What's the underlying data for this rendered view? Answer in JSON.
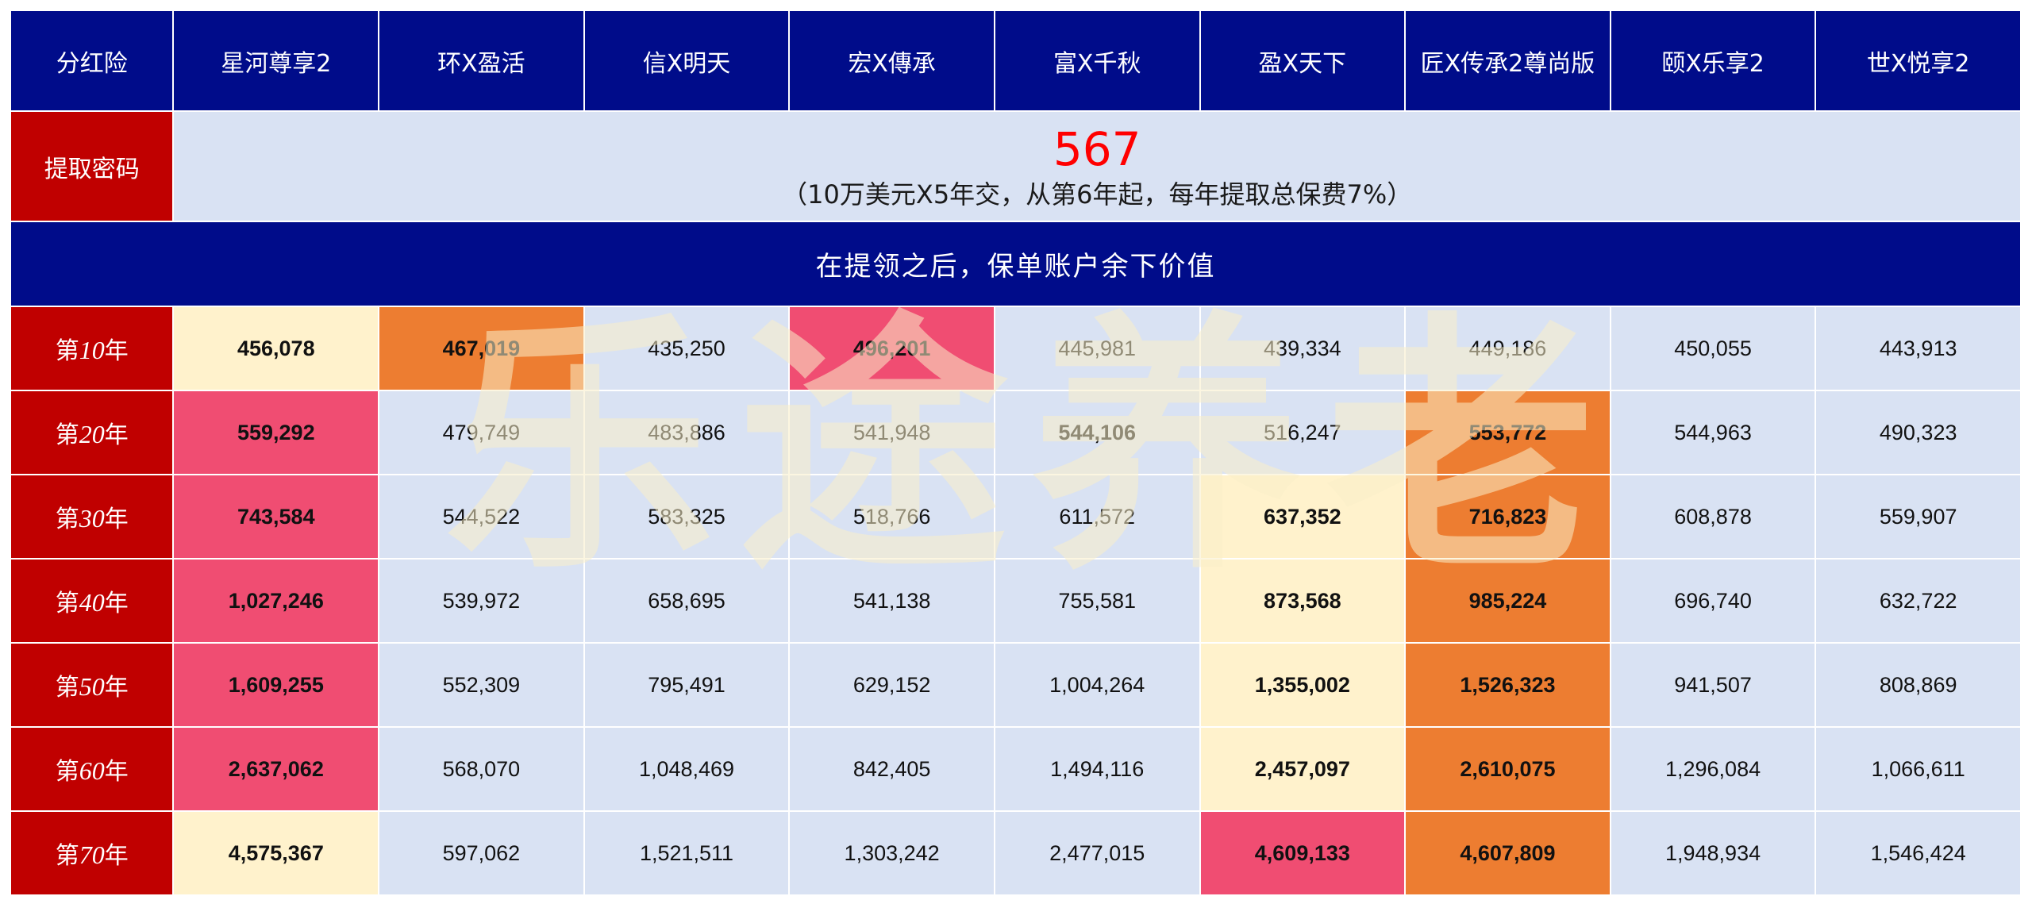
{
  "header": {
    "corner_label": "分红险",
    "products": [
      "星河尊享2",
      "环X盈活",
      "信X明天",
      "宏X傳承",
      "富X千秋",
      "盈X天下",
      "匠X传承2尊尚版",
      "颐X乐享2",
      "世X悦享2"
    ]
  },
  "extraction": {
    "label": "提取密码",
    "code": "567",
    "note": "（10万美元X5年交，从第6年起，每年提取总保费7%）"
  },
  "section_title": "在提领之后，保单账户余下价值",
  "year_suffix": "年",
  "year_prefix": "第",
  "rows": [
    {
      "year": "10",
      "values": [
        "456,078",
        "467,019",
        "435,250",
        "496,201",
        "445,981",
        "439,334",
        "449,186",
        "450,055",
        "443,913"
      ]
    },
    {
      "year": "20",
      "values": [
        "559,292",
        "479,749",
        "483,886",
        "541,948",
        "544,106",
        "516,247",
        "553,772",
        "544,963",
        "490,323"
      ]
    },
    {
      "year": "30",
      "values": [
        "743,584",
        "544,522",
        "583,325",
        "518,766",
        "611,572",
        "637,352",
        "716,823",
        "608,878",
        "559,907"
      ]
    },
    {
      "year": "40",
      "values": [
        "1,027,246",
        "539,972",
        "658,695",
        "541,138",
        "755,581",
        "873,568",
        "985,224",
        "696,740",
        "632,722"
      ]
    },
    {
      "year": "50",
      "values": [
        "1,609,255",
        "552,309",
        "795,491",
        "629,152",
        "1,004,264",
        "1,355,002",
        "1,526,323",
        "941,507",
        "808,869"
      ]
    },
    {
      "year": "60",
      "values": [
        "2,637,062",
        "568,070",
        "1,048,469",
        "842,405",
        "1,494,116",
        "2,457,097",
        "2,610,075",
        "1,296,084",
        "1,066,611"
      ]
    },
    {
      "year": "70",
      "values": [
        "4,575,367",
        "597,062",
        "1,521,511",
        "1,303,242",
        "2,477,015",
        "4,609,133",
        "4,607,809",
        "1,948,934",
        "1,546,424"
      ]
    }
  ],
  "highlight_colors": {
    "rank_1": "#f04d72",
    "rank_2": "#ed7d31",
    "rank_3": "#fff2cc",
    "default": "#d9e2f3",
    "header_bg": "#000c8a",
    "label_bg": "#c00000"
  },
  "watermark": "乐途养老"
}
